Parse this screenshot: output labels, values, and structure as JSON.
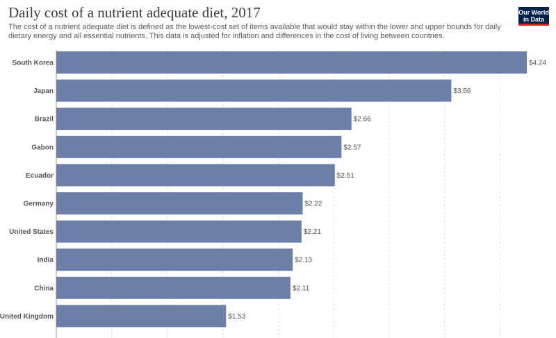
{
  "header": {
    "title": "Daily cost of a nutrient adequate diet, 2017",
    "subtitle": "The cost of a nutrient adequate diet is defined as the lowest-cost set of items available that would stay within the lower and upper bounds for daily dietary energy and all essential nutrients. This data is adjusted for inflation and differences in the cost of living between countries.",
    "logo_line1": "Our World",
    "logo_line2": "in Data"
  },
  "colors": {
    "bar": "#6c7fa8",
    "logo_bg": "#002147",
    "logo_accent": "#ce261e"
  },
  "chart_data": {
    "type": "bar",
    "orientation": "horizontal",
    "title": "Daily cost of a nutrient adequate diet, 2017",
    "categories": [
      "South Korea",
      "Japan",
      "Brazil",
      "Gabon",
      "Ecuador",
      "Germany",
      "United States",
      "India",
      "China",
      "United Kingdom"
    ],
    "values": [
      4.24,
      3.56,
      2.66,
      2.57,
      2.51,
      2.22,
      2.21,
      2.13,
      2.11,
      1.53
    ],
    "value_labels": [
      "$4.24",
      "$3.56",
      "$2.66",
      "$2.57",
      "$2.51",
      "$2.22",
      "$2.21",
      "$2.13",
      "$2.11",
      "$1.53"
    ],
    "xlim": [
      0,
      4.24
    ],
    "grid": true
  }
}
